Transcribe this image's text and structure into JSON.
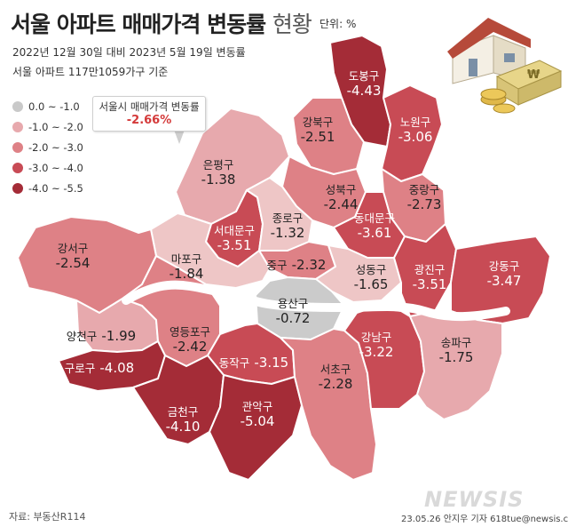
{
  "header": {
    "title_main": "서울 아파트 매매가격 변동률",
    "title_light": "현황",
    "unit": "단위: %",
    "subtitle_1": "2022년 12월 30일 대비 2023년 5월 19일 변동률",
    "subtitle_2": "서울 아파트 117만1059가구 기준"
  },
  "legend": [
    {
      "label": "0.0 ~ -1.0",
      "color": "#c9c9c9"
    },
    {
      "label": "-1.0 ~ -2.0",
      "color": "#e7a9ad"
    },
    {
      "label": "-2.0 ~ -3.0",
      "color": "#de8186"
    },
    {
      "label": "-3.0 ~ -4.0",
      "color": "#c84b55"
    },
    {
      "label": "-4.0 ~ -5.5",
      "color": "#a42c37"
    }
  ],
  "callout": {
    "label": "서울시 매매가격 변동률",
    "value": "-2.66%"
  },
  "colors": {
    "river": "#ffffff",
    "callout_value": "#d43a3a",
    "map_border": "#ffffff"
  },
  "districts": [
    {
      "name": "도봉구",
      "value": "-4.43"
    },
    {
      "name": "강북구",
      "value": "-2.51"
    },
    {
      "name": "노원구",
      "value": "-3.06"
    },
    {
      "name": "은평구",
      "value": "-1.38"
    },
    {
      "name": "성북구",
      "value": "-2.44"
    },
    {
      "name": "중랑구",
      "value": "-2.73"
    },
    {
      "name": "서대문구",
      "value": "-3.51"
    },
    {
      "name": "종로구",
      "value": "-1.32"
    },
    {
      "name": "동대문구",
      "value": "-3.61"
    },
    {
      "name": "강서구",
      "value": "-2.54"
    },
    {
      "name": "마포구",
      "value": "-1.84"
    },
    {
      "name": "중구",
      "value": "-2.32"
    },
    {
      "name": "성동구",
      "value": "-1.65"
    },
    {
      "name": "광진구",
      "value": "-3.51"
    },
    {
      "name": "강동구",
      "value": "-3.47"
    },
    {
      "name": "용산구",
      "value": "-0.72"
    },
    {
      "name": "양천구",
      "value": "-1.99"
    },
    {
      "name": "영등포구",
      "value": "-2.42"
    },
    {
      "name": "강남구",
      "value": "-3.22"
    },
    {
      "name": "송파구",
      "value": "-1.75"
    },
    {
      "name": "구로구",
      "value": "-4.08"
    },
    {
      "name": "동작구",
      "value": "-3.15"
    },
    {
      "name": "서초구",
      "value": "-2.28"
    },
    {
      "name": "금천구",
      "value": "-4.10"
    },
    {
      "name": "관악구",
      "value": "-5.04"
    }
  ],
  "footer": {
    "source": "자료: 부동산R114",
    "credit": "23.05.26 안지우 기자 618tue@newsis.com",
    "logo": "NEWSIS"
  }
}
